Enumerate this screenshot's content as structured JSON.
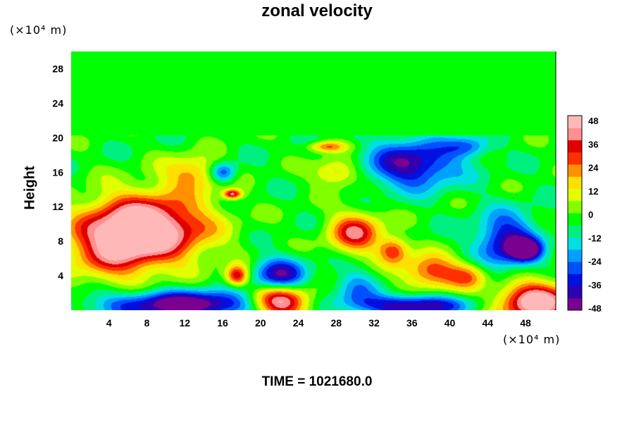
{
  "chart_data": {
    "type": "heatmap",
    "title": "zonal velocity",
    "ylabel": "Height",
    "xlabel": "",
    "x_unit": "(×10⁴ m)",
    "y_unit": "(×10⁴ m)",
    "x_ticks": [
      4,
      8,
      12,
      16,
      20,
      24,
      28,
      32,
      36,
      40,
      44,
      48
    ],
    "y_ticks": [
      4,
      8,
      12,
      16,
      20,
      24,
      28
    ],
    "xlim": [
      0,
      51.2
    ],
    "ylim": [
      0,
      30
    ],
    "colorbar": {
      "ticks": [
        48,
        36,
        24,
        12,
        0,
        -12,
        -24,
        -36,
        -48
      ],
      "range": [
        -52,
        52
      ],
      "colors": [
        "#7a0090",
        "#3000b0",
        "#0010e0",
        "#0050ff",
        "#00a0ff",
        "#00e0e0",
        "#00f080",
        "#00ff00",
        "#80ff00",
        "#e0ff00",
        "#ffe000",
        "#ff9000",
        "#ff3000",
        "#e00000",
        "#ff9090",
        "#ffb8b8"
      ]
    },
    "background_value": -4,
    "features": [
      {
        "x": 8,
        "y": 9.5,
        "rx": 8,
        "ry": 5,
        "value": 60
      },
      {
        "x": 4,
        "y": 7,
        "rx": 6,
        "ry": 5,
        "value": 22
      },
      {
        "x": 12,
        "y": 0.7,
        "rx": 11,
        "ry": 2,
        "value": -55
      },
      {
        "x": 22,
        "y": 1,
        "rx": 4,
        "ry": 2.5,
        "value": 58
      },
      {
        "x": 49,
        "y": 1,
        "rx": 5,
        "ry": 3,
        "value": 55
      },
      {
        "x": 36,
        "y": 0.6,
        "rx": 7,
        "ry": 1.5,
        "value": -48
      },
      {
        "x": 36,
        "y": 17,
        "rx": 6,
        "ry": 3.5,
        "value": -46
      },
      {
        "x": 42,
        "y": 19,
        "rx": 3,
        "ry": 1.5,
        "value": -26
      },
      {
        "x": 46,
        "y": 8,
        "rx": 4,
        "ry": 4,
        "value": -44
      },
      {
        "x": 48,
        "y": 7,
        "rx": 2,
        "ry": 1.5,
        "value": -52
      },
      {
        "x": 22,
        "y": 4,
        "rx": 3.5,
        "ry": 2.5,
        "value": -46
      },
      {
        "x": 30,
        "y": 9,
        "rx": 3.5,
        "ry": 3,
        "value": 38
      },
      {
        "x": 38,
        "y": 4.5,
        "rx": 4,
        "ry": 2.5,
        "value": 32
      },
      {
        "x": 34,
        "y": 7,
        "rx": 2,
        "ry": 2,
        "value": 30
      },
      {
        "x": 27,
        "y": 19,
        "rx": 2.5,
        "ry": 0.8,
        "value": 26
      },
      {
        "x": 16,
        "y": 16,
        "rx": 1.8,
        "ry": 1.5,
        "value": -40
      },
      {
        "x": 17,
        "y": 13.5,
        "rx": 1.2,
        "ry": 0.7,
        "value": 40
      },
      {
        "x": 13,
        "y": 16,
        "rx": 4,
        "ry": 2.5,
        "value": 22
      },
      {
        "x": 28,
        "y": 16,
        "rx": 3,
        "ry": 2,
        "value": 22
      },
      {
        "x": 30,
        "y": 2.5,
        "rx": 3,
        "ry": 3,
        "value": -22
      },
      {
        "x": 42,
        "y": 4,
        "rx": 2.5,
        "ry": 2,
        "value": 20
      },
      {
        "x": 17.5,
        "y": 4,
        "rx": 1.5,
        "ry": 1.5,
        "value": 40
      }
    ],
    "upper_layer": {
      "y_from": 20.3,
      "y_to": 30,
      "value": -2
    }
  },
  "footer": {
    "time_label": "TIME = 1021680.0"
  }
}
